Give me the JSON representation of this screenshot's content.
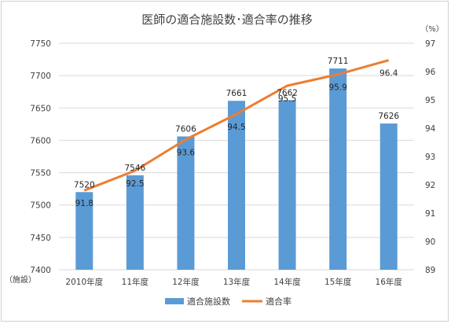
{
  "chart_data": {
    "type": "bar+line",
    "title": "医師の適合施設数･適合率の推移",
    "categories": [
      "2010年度",
      "11年度",
      "12年度",
      "13年度",
      "14年度",
      "15年度",
      "16年度"
    ],
    "series": [
      {
        "name": "適合施設数",
        "type": "bar",
        "axis": "left",
        "color": "#5b9bd5",
        "values": [
          7520,
          7546,
          7606,
          7661,
          7662,
          7711,
          7626
        ]
      },
      {
        "name": "適合率",
        "type": "line",
        "axis": "right",
        "color": "#ed7d31",
        "values": [
          91.8,
          92.5,
          93.6,
          94.5,
          95.5,
          95.9,
          96.4
        ]
      }
    ],
    "left_axis": {
      "unit": "（施設）",
      "min": 7400,
      "max": 7750,
      "step": 50
    },
    "right_axis": {
      "unit": "（%）",
      "min": 89,
      "max": 97,
      "step": 1
    },
    "legend_position": "bottom",
    "grid": true
  }
}
